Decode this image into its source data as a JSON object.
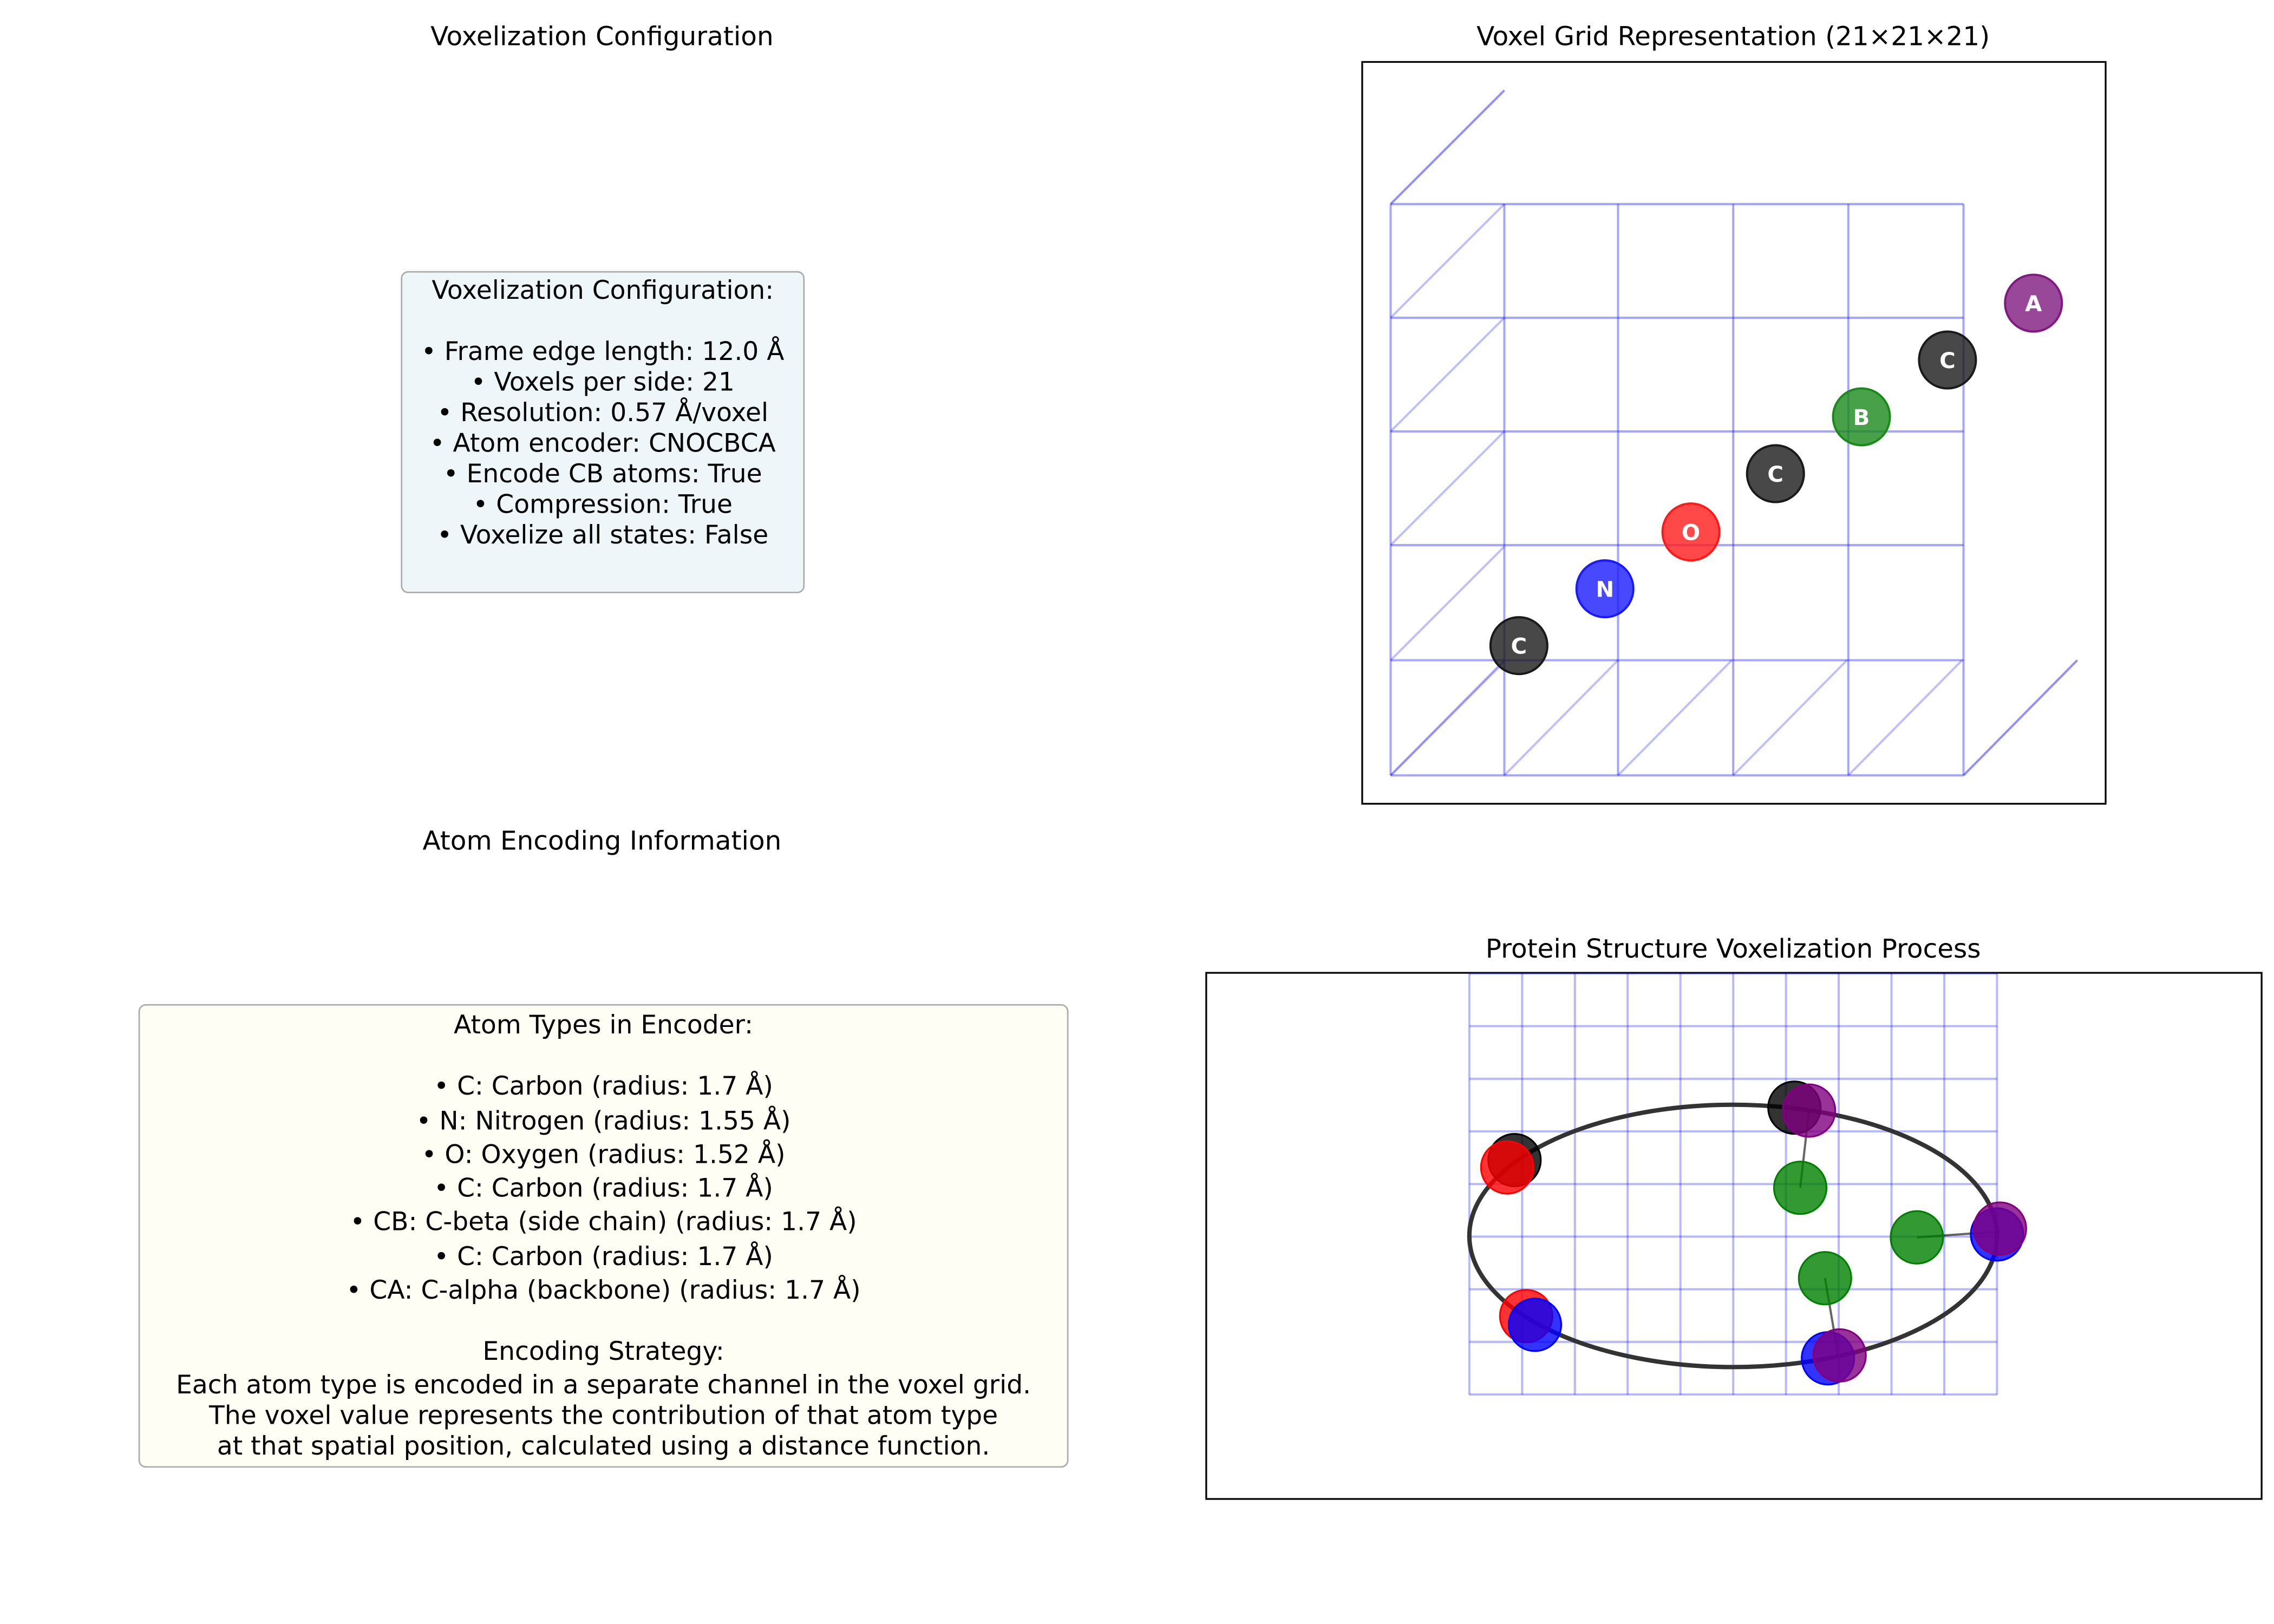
{
  "panels": {
    "config_title": "Voxelization Configuration",
    "grid_title": "Voxel Grid Representation (21×21×21)",
    "encoding_title": "Atom Encoding Information",
    "process_title": "Protein Structure Voxelization Process"
  },
  "config_box": {
    "heading": "Voxelization Configuration:",
    "lines": [
      "• Frame edge length: 12.0 Å",
      "• Voxels per side: 21",
      "• Resolution: 0.57 Å/voxel",
      "• Atom encoder: CNOCBCA",
      "• Encode CB atoms: True",
      "• Compression: True",
      "• Voxelize all states: False"
    ]
  },
  "encoding_box": {
    "heading": "Atom Types in Encoder:",
    "atom_lines": [
      "• C: Carbon (radius: 1.7 Å)",
      "• N: Nitrogen (radius: 1.55 Å)",
      "• O: Oxygen (radius: 1.52 Å)",
      "• C: Carbon (radius: 1.7 Å)",
      "• CB: C-beta (side chain) (radius: 1.7 Å)",
      "• C: Carbon (radius: 1.7 Å)",
      "• CA: C-alpha (backbone) (radius: 1.7 Å)"
    ],
    "strategy_heading": "Encoding Strategy:",
    "strategy_lines": [
      "Each atom type is encoded in a separate channel in the voxel grid.",
      "The voxel value represents the contribution of that atom type",
      "at that spatial position, calculated using a distance function."
    ]
  },
  "grid_atoms": [
    {
      "label": "C",
      "color": "#1a1a1a"
    },
    {
      "label": "N",
      "color": "#1a1aff"
    },
    {
      "label": "O",
      "color": "#ff1a1a"
    },
    {
      "label": "C",
      "color": "#1a1a1a"
    },
    {
      "label": "B",
      "color": "#1a8a1a"
    },
    {
      "label": "C",
      "color": "#1a1a1a"
    },
    {
      "label": "A",
      "color": "#801a80"
    }
  ],
  "colors": {
    "grid_line": "#0000ff",
    "carbon": "#000000",
    "nitrogen": "#0000ff",
    "oxygen": "#ff0000",
    "cbeta": "#008000",
    "calpha": "#800080",
    "config_bg": "#eef6f9",
    "encoding_bg": "#fffef5"
  }
}
